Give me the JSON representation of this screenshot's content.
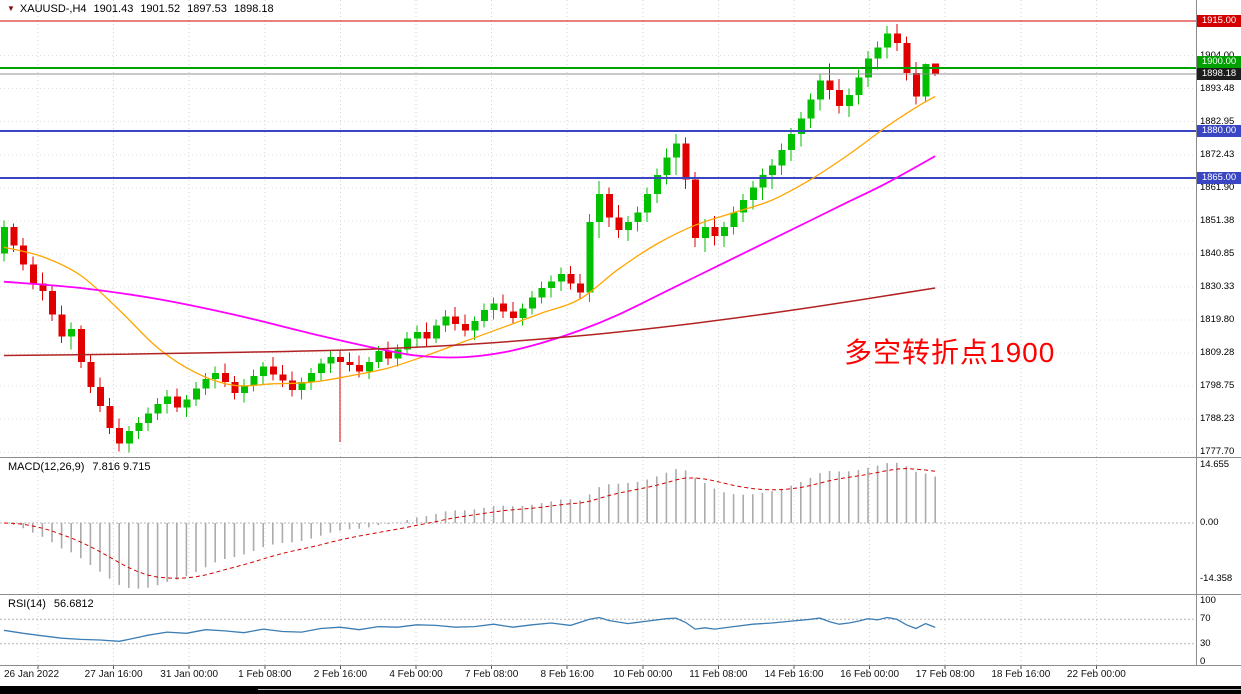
{
  "header": {
    "symbol_period": "XAUUSD-,H4",
    "open": "1901.43",
    "high": "1901.52",
    "low": "1897.53",
    "close": "1898.18"
  },
  "annotation": {
    "text": "多空转折点1900",
    "color": "#FF0000"
  },
  "indicators": {
    "macd": {
      "label": "MACD(12,26,9)",
      "values_text": "7.816 9.715",
      "scale": [
        "14.655",
        "0.00",
        "-14.358"
      ],
      "fast": 12,
      "slow": 26,
      "signal": 9
    },
    "rsi": {
      "label": "RSI(14)",
      "value_text": "56.6812",
      "scale": [
        "100",
        "70",
        "30",
        "0"
      ],
      "period": 14,
      "levels": [
        70,
        30
      ]
    }
  },
  "price_scale": {
    "tick_prices": [
      1904.0,
      1893.48,
      1882.95,
      1872.43,
      1861.9,
      1851.38,
      1840.85,
      1830.33,
      1819.8,
      1809.28,
      1798.75,
      1788.23,
      1777.7
    ]
  },
  "time_axis": {
    "labels": [
      "26 Jan 2022",
      "27 Jan 16:00",
      "31 Jan 00:00",
      "1 Feb 08:00",
      "2 Feb 16:00",
      "4 Feb 00:00",
      "7 Feb 08:00",
      "8 Feb 16:00",
      "10 Feb 00:00",
      "11 Feb 08:00",
      "14 Feb 16:00",
      "16 Feb 00:00",
      "17 Feb 08:00",
      "18 Feb 16:00",
      "22 Feb 00:00"
    ]
  },
  "chart_data": {
    "type": "candlestick",
    "symbol": "XAUUSD-",
    "timeframe": "H4",
    "ylim": [
      1776.2,
      1921.7
    ],
    "up_color": "#00C000",
    "down_color": "#E00000",
    "levels": [
      {
        "price": 1915.0,
        "label": "1915.00",
        "color": "#D40000",
        "badge": "#D40000",
        "width": 1
      },
      {
        "price": 1900.0,
        "label": "1900.00",
        "color": "#00A000",
        "badge": "#00A000",
        "width": 2
      },
      {
        "price": 1898.18,
        "label": "1898.18",
        "color": "#909090",
        "badge": "#1c1c1c",
        "width": 1,
        "role": "current-price"
      },
      {
        "price": 1880.0,
        "label": "1880.00",
        "color": "#3A45C4",
        "badge": "#3A45C4",
        "width": 2
      },
      {
        "price": 1865.0,
        "label": "1865.00",
        "color": "#3A45C4",
        "badge": "#3A45C4",
        "width": 2
      }
    ],
    "candles": [
      [
        1841.0,
        1851.5,
        1838.5,
        1849.5
      ],
      [
        1849.5,
        1850.5,
        1841.5,
        1843.5
      ],
      [
        1843.5,
        1846.0,
        1835.5,
        1837.5
      ],
      [
        1837.5,
        1840.0,
        1829.5,
        1831.5
      ],
      [
        1831.5,
        1835.0,
        1826.0,
        1829.0
      ],
      [
        1829.0,
        1831.0,
        1819.5,
        1821.5
      ],
      [
        1821.5,
        1824.5,
        1812.5,
        1814.5
      ],
      [
        1814.5,
        1819.0,
        1810.5,
        1817.0
      ],
      [
        1817.0,
        1818.0,
        1804.5,
        1806.5
      ],
      [
        1806.5,
        1809.0,
        1796.5,
        1798.5
      ],
      [
        1798.5,
        1801.5,
        1790.5,
        1792.5
      ],
      [
        1792.5,
        1795.0,
        1783.5,
        1785.5
      ],
      [
        1785.5,
        1788.5,
        1778.0,
        1780.5
      ],
      [
        1780.5,
        1786.0,
        1777.7,
        1784.5
      ],
      [
        1784.5,
        1789.0,
        1782.0,
        1787.0
      ],
      [
        1787.0,
        1792.0,
        1784.5,
        1790.0
      ],
      [
        1790.0,
        1795.0,
        1788.0,
        1793.0
      ],
      [
        1793.0,
        1797.5,
        1790.0,
        1795.5
      ],
      [
        1795.5,
        1798.0,
        1790.5,
        1792.0
      ],
      [
        1792.0,
        1796.0,
        1789.0,
        1794.5
      ],
      [
        1794.5,
        1800.0,
        1792.5,
        1798.0
      ],
      [
        1798.0,
        1803.0,
        1796.0,
        1801.0
      ],
      [
        1801.0,
        1805.0,
        1798.0,
        1803.0
      ],
      [
        1803.0,
        1806.0,
        1798.5,
        1800.0
      ],
      [
        1800.0,
        1802.0,
        1794.5,
        1796.5
      ],
      [
        1796.5,
        1801.0,
        1793.5,
        1799.0
      ],
      [
        1799.0,
        1804.0,
        1797.0,
        1802.0
      ],
      [
        1802.0,
        1806.5,
        1799.5,
        1805.0
      ],
      [
        1805.0,
        1808.0,
        1800.5,
        1802.5
      ],
      [
        1802.5,
        1805.5,
        1798.5,
        1800.5
      ],
      [
        1800.5,
        1803.5,
        1795.5,
        1797.5
      ],
      [
        1797.5,
        1801.5,
        1794.5,
        1800.0
      ],
      [
        1800.0,
        1804.5,
        1797.5,
        1803.0
      ],
      [
        1803.0,
        1807.5,
        1800.5,
        1806.0
      ],
      [
        1806.0,
        1810.0,
        1803.0,
        1808.0
      ],
      [
        1808.0,
        1810.5,
        1781.0,
        1806.5
      ],
      [
        1806.5,
        1809.5,
        1803.5,
        1805.5
      ],
      [
        1805.5,
        1808.5,
        1801.5,
        1803.5
      ],
      [
        1803.5,
        1808.0,
        1801.0,
        1806.5
      ],
      [
        1806.5,
        1811.5,
        1804.5,
        1810.0
      ],
      [
        1810.0,
        1813.0,
        1805.5,
        1807.5
      ],
      [
        1807.5,
        1812.0,
        1805.0,
        1810.5
      ],
      [
        1810.5,
        1816.0,
        1808.5,
        1814.0
      ],
      [
        1814.0,
        1818.0,
        1811.0,
        1816.0
      ],
      [
        1816.0,
        1819.0,
        1811.5,
        1814.0
      ],
      [
        1814.0,
        1820.0,
        1812.5,
        1818.0
      ],
      [
        1818.0,
        1823.0,
        1816.0,
        1821.0
      ],
      [
        1821.0,
        1824.0,
        1816.5,
        1818.5
      ],
      [
        1818.5,
        1821.5,
        1814.5,
        1816.5
      ],
      [
        1816.5,
        1821.0,
        1813.5,
        1819.5
      ],
      [
        1819.5,
        1825.0,
        1817.5,
        1823.0
      ],
      [
        1823.0,
        1827.0,
        1820.0,
        1825.0
      ],
      [
        1825.0,
        1828.0,
        1820.5,
        1822.5
      ],
      [
        1822.5,
        1825.5,
        1818.5,
        1820.5
      ],
      [
        1820.5,
        1825.0,
        1818.0,
        1823.5
      ],
      [
        1823.5,
        1829.0,
        1821.5,
        1827.0
      ],
      [
        1827.0,
        1832.0,
        1825.0,
        1830.0
      ],
      [
        1830.0,
        1834.0,
        1827.0,
        1832.0
      ],
      [
        1832.0,
        1836.5,
        1829.0,
        1834.5
      ],
      [
        1834.5,
        1837.0,
        1829.5,
        1831.5
      ],
      [
        1831.5,
        1834.5,
        1826.5,
        1828.5
      ],
      [
        1828.5,
        1853.5,
        1825.5,
        1851.0
      ],
      [
        1851.0,
        1864.0,
        1846.0,
        1860.0
      ],
      [
        1860.0,
        1862.0,
        1849.5,
        1852.5
      ],
      [
        1852.5,
        1856.5,
        1846.0,
        1848.5
      ],
      [
        1848.5,
        1853.0,
        1845.0,
        1851.0
      ],
      [
        1851.0,
        1856.0,
        1848.0,
        1854.0
      ],
      [
        1854.0,
        1862.0,
        1851.0,
        1860.0
      ],
      [
        1860.0,
        1868.0,
        1857.0,
        1866.0
      ],
      [
        1866.0,
        1874.5,
        1863.0,
        1871.5
      ],
      [
        1871.5,
        1879.0,
        1866.0,
        1876.0
      ],
      [
        1876.0,
        1878.0,
        1861.5,
        1864.5
      ],
      [
        1864.5,
        1867.0,
        1843.0,
        1846.0
      ],
      [
        1846.0,
        1852.0,
        1841.5,
        1849.5
      ],
      [
        1849.5,
        1853.0,
        1843.5,
        1846.5
      ],
      [
        1846.5,
        1851.0,
        1843.0,
        1849.5
      ],
      [
        1849.5,
        1856.0,
        1847.0,
        1854.0
      ],
      [
        1854.0,
        1860.0,
        1851.0,
        1858.0
      ],
      [
        1858.0,
        1864.0,
        1855.0,
        1862.0
      ],
      [
        1862.0,
        1868.0,
        1858.0,
        1866.0
      ],
      [
        1866.0,
        1871.0,
        1861.5,
        1869.0
      ],
      [
        1869.0,
        1876.0,
        1866.0,
        1874.0
      ],
      [
        1874.0,
        1881.0,
        1870.5,
        1879.0
      ],
      [
        1879.0,
        1886.0,
        1875.0,
        1884.0
      ],
      [
        1884.0,
        1892.0,
        1881.0,
        1890.0
      ],
      [
        1890.0,
        1898.0,
        1886.5,
        1896.0
      ],
      [
        1896.0,
        1901.5,
        1890.0,
        1893.0
      ],
      [
        1893.0,
        1896.5,
        1885.5,
        1888.0
      ],
      [
        1888.0,
        1893.5,
        1884.5,
        1891.5
      ],
      [
        1891.5,
        1899.5,
        1888.5,
        1897.0
      ],
      [
        1897.0,
        1905.5,
        1894.0,
        1903.0
      ],
      [
        1903.0,
        1908.5,
        1899.5,
        1906.5
      ],
      [
        1906.5,
        1913.5,
        1903.0,
        1911.0
      ],
      [
        1911.0,
        1914.0,
        1905.5,
        1908.0
      ],
      [
        1908.0,
        1910.0,
        1896.0,
        1898.5
      ],
      [
        1898.5,
        1902.0,
        1888.5,
        1891.0
      ],
      [
        1891.0,
        1901.5,
        1889.0,
        1901.4
      ],
      [
        1901.43,
        1901.52,
        1897.53,
        1898.18
      ]
    ],
    "moving_averages": [
      {
        "name": "ma-fast",
        "color": "#FFA500",
        "width": 1.3,
        "points": [
          [
            0,
            1843
          ],
          [
            4,
            1840
          ],
          [
            8,
            1834
          ],
          [
            12,
            1823
          ],
          [
            16,
            1811
          ],
          [
            20,
            1803
          ],
          [
            24,
            1799
          ],
          [
            28,
            1799.5
          ],
          [
            32,
            1800
          ],
          [
            36,
            1802
          ],
          [
            40,
            1804.5
          ],
          [
            44,
            1808.5
          ],
          [
            48,
            1813
          ],
          [
            52,
            1817.5
          ],
          [
            56,
            1822
          ],
          [
            60,
            1826.5
          ],
          [
            64,
            1836
          ],
          [
            68,
            1844
          ],
          [
            72,
            1850
          ],
          [
            76,
            1854
          ],
          [
            80,
            1858
          ],
          [
            84,
            1864.5
          ],
          [
            88,
            1872.5
          ],
          [
            92,
            1881.5
          ],
          [
            95,
            1887.5
          ],
          [
            97,
            1891
          ]
        ]
      },
      {
        "name": "ma-medium",
        "color": "#FF00FF",
        "width": 1.8,
        "points": [
          [
            0,
            1832
          ],
          [
            8,
            1830
          ],
          [
            16,
            1826.5
          ],
          [
            24,
            1821.5
          ],
          [
            32,
            1815.5
          ],
          [
            40,
            1810
          ],
          [
            44,
            1808.2
          ],
          [
            48,
            1808
          ],
          [
            52,
            1809.5
          ],
          [
            56,
            1812.5
          ],
          [
            60,
            1816.5
          ],
          [
            64,
            1821.5
          ],
          [
            68,
            1827.5
          ],
          [
            72,
            1833.5
          ],
          [
            76,
            1839.5
          ],
          [
            80,
            1845.5
          ],
          [
            84,
            1851.5
          ],
          [
            88,
            1857.5
          ],
          [
            92,
            1863.5
          ],
          [
            97,
            1872
          ]
        ]
      },
      {
        "name": "ma-slow",
        "color": "#B22222",
        "width": 1.5,
        "points": [
          [
            0,
            1808.5
          ],
          [
            12,
            1808.9
          ],
          [
            24,
            1809.5
          ],
          [
            36,
            1810.3
          ],
          [
            48,
            1812
          ],
          [
            60,
            1814.8
          ],
          [
            72,
            1818.8
          ],
          [
            84,
            1823.8
          ],
          [
            97,
            1830
          ]
        ]
      }
    ],
    "rsi_points": [
      [
        0,
        52
      ],
      [
        2,
        47
      ],
      [
        4,
        43
      ],
      [
        6,
        39
      ],
      [
        8,
        37
      ],
      [
        10,
        36
      ],
      [
        12,
        34
      ],
      [
        13,
        37
      ],
      [
        15,
        44
      ],
      [
        17,
        49
      ],
      [
        19,
        47
      ],
      [
        21,
        53
      ],
      [
        23,
        51
      ],
      [
        25,
        48
      ],
      [
        27,
        54
      ],
      [
        29,
        50
      ],
      [
        31,
        49
      ],
      [
        33,
        55
      ],
      [
        35,
        57
      ],
      [
        37,
        53
      ],
      [
        39,
        58
      ],
      [
        41,
        57
      ],
      [
        43,
        61
      ],
      [
        45,
        60
      ],
      [
        47,
        57
      ],
      [
        49,
        58
      ],
      [
        51,
        62
      ],
      [
        53,
        57
      ],
      [
        55,
        61
      ],
      [
        57,
        64
      ],
      [
        59,
        60
      ],
      [
        61,
        70
      ],
      [
        62,
        73
      ],
      [
        63,
        68
      ],
      [
        65,
        63
      ],
      [
        67,
        67
      ],
      [
        69,
        71
      ],
      [
        70,
        72
      ],
      [
        71,
        65
      ],
      [
        72,
        54
      ],
      [
        73,
        56
      ],
      [
        74,
        54
      ],
      [
        76,
        58
      ],
      [
        78,
        62
      ],
      [
        80,
        64
      ],
      [
        82,
        67
      ],
      [
        84,
        70
      ],
      [
        85,
        72
      ],
      [
        86,
        66
      ],
      [
        87,
        62
      ],
      [
        88,
        64
      ],
      [
        89,
        67
      ],
      [
        90,
        71
      ],
      [
        91,
        69
      ],
      [
        92,
        73
      ],
      [
        93,
        70
      ],
      [
        94,
        61
      ],
      [
        95,
        55
      ],
      [
        96,
        63
      ],
      [
        97,
        56.7
      ]
    ]
  }
}
